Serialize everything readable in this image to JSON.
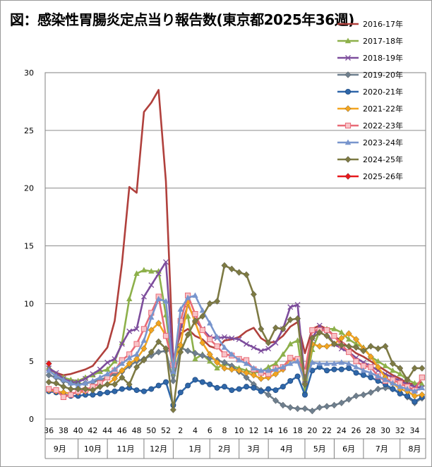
{
  "title": "図：感染性胃腸炎定点当り報告数(東京都2025年36週)",
  "chart_data": {
    "type": "line",
    "title": "図：感染性胃腸炎定点当り報告数(東京都2025年36週)",
    "xlabel": "",
    "ylabel": "",
    "ylim": [
      0,
      30
    ],
    "y_ticks": [
      "0",
      "5",
      "10",
      "15",
      "20",
      "25",
      "30"
    ],
    "grid": true,
    "legend_position": "top-right",
    "week_labels": [
      "36",
      "",
      "38",
      "",
      "40",
      "",
      "42",
      "",
      "44",
      "",
      "46",
      "",
      "48",
      "",
      "50",
      "",
      "52",
      "",
      "2",
      "",
      "4",
      "",
      "6",
      "",
      "8",
      "",
      "10",
      "",
      "12",
      "",
      "14",
      "",
      "16",
      "",
      "18",
      "",
      "20",
      "",
      "22",
      "",
      "24",
      "",
      "26",
      "",
      "28",
      "",
      "30",
      "",
      "32",
      "",
      "34",
      ""
    ],
    "month_labels": [
      {
        "label": "9月",
        "center": 2
      },
      {
        "label": "10月",
        "center": 6.5
      },
      {
        "label": "11月",
        "center": 11
      },
      {
        "label": "12月",
        "center": 15.5
      },
      {
        "label": "1月",
        "center": 20.5
      },
      {
        "label": "2月",
        "center": 24.5
      },
      {
        "label": "3月",
        "center": 28.5
      },
      {
        "label": "4月",
        "center": 33
      },
      {
        "label": "5月",
        "center": 37.5
      },
      {
        "label": "6月",
        "center": 41.5
      },
      {
        "label": "7月",
        "center": 46
      },
      {
        "label": "8月",
        "center": 50.5
      }
    ],
    "month_dividers": [
      4.5,
      8.5,
      13.5,
      17.5,
      22.5,
      26.5,
      30.5,
      35.5,
      39.5,
      43.5,
      48.5
    ],
    "series": [
      {
        "name": "2016-17年",
        "color": "#b0403c",
        "marker": "none",
        "values": [
          4.3,
          4.0,
          3.8,
          3.9,
          4.1,
          4.3,
          4.6,
          5.4,
          6.2,
          8.5,
          13.5,
          20.1,
          19.6,
          26.6,
          27.4,
          28.5,
          20.6,
          5.1,
          7.4,
          7.8,
          7.2,
          6.9,
          6.3,
          6.1,
          6.8,
          6.9,
          7.1,
          7.6,
          7.9,
          7.0,
          6.6,
          6.7,
          7.2,
          8.0,
          8.4,
          5.7,
          7.8,
          8.1,
          7.8,
          7.2,
          6.7,
          6.2,
          5.7,
          5.4,
          5.0,
          4.6,
          4.2,
          3.8,
          3.5,
          3.1,
          3.0,
          3.2
        ]
      },
      {
        "name": "2017-18年",
        "color": "#8db04a",
        "marker": "triangle",
        "values": [
          4.5,
          3.9,
          3.6,
          3.4,
          3.3,
          3.6,
          3.8,
          4.1,
          4.3,
          5.0,
          6.6,
          10.4,
          12.6,
          12.9,
          12.8,
          12.8,
          9.0,
          3.9,
          8.2,
          8.9,
          5.2,
          5.6,
          5.0,
          4.4,
          4.8,
          4.6,
          4.4,
          4.2,
          4.0,
          4.1,
          4.5,
          4.8,
          5.6,
          6.5,
          6.8,
          2.4,
          6.0,
          7.6,
          7.8,
          7.8,
          7.5,
          6.9,
          6.5,
          6.2,
          5.4,
          5.0,
          4.6,
          4.2,
          3.9,
          3.4,
          3.1,
          3.0
        ]
      },
      {
        "name": "2018-19年",
        "color": "#7d4d9c",
        "marker": "x",
        "values": [
          4.4,
          4.0,
          3.5,
          3.2,
          3.2,
          3.5,
          3.9,
          4.3,
          4.9,
          5.2,
          6.5,
          7.6,
          7.8,
          10.6,
          11.6,
          12.6,
          13.6,
          5.0,
          7.8,
          9.9,
          8.6,
          7.8,
          7.1,
          7.0,
          7.1,
          7.0,
          6.9,
          6.5,
          6.2,
          5.9,
          6.1,
          6.6,
          7.8,
          9.7,
          9.9,
          3.4,
          7.0,
          8.1,
          7.4,
          6.5,
          6.1,
          5.8,
          5.3,
          4.9,
          4.6,
          4.2,
          3.9,
          3.6,
          3.3,
          3.0,
          2.8,
          2.7
        ]
      },
      {
        "name": "2019-20年",
        "color": "#6e7f8e",
        "marker": "diamond",
        "values": [
          3.8,
          3.6,
          3.3,
          3.1,
          3.0,
          3.1,
          3.2,
          3.4,
          3.6,
          3.9,
          4.1,
          4.6,
          5.0,
          5.2,
          5.5,
          5.8,
          5.9,
          3.3,
          6.2,
          5.9,
          5.7,
          5.5,
          5.3,
          5.1,
          4.9,
          4.6,
          4.1,
          3.6,
          3.0,
          2.5,
          2.1,
          1.6,
          1.2,
          1.0,
          0.9,
          0.9,
          0.7,
          1.0,
          1.1,
          1.2,
          1.4,
          1.7,
          2.0,
          2.1,
          2.3,
          2.6,
          2.7,
          2.6,
          2.3,
          1.9,
          1.4,
          1.8
        ]
      },
      {
        "name": "2020-21年",
        "color": "#2f67a9",
        "marker": "circle",
        "values": [
          2.4,
          2.3,
          2.1,
          2.0,
          2.0,
          2.1,
          2.1,
          2.2,
          2.3,
          2.4,
          2.6,
          2.7,
          2.5,
          2.4,
          2.6,
          2.9,
          3.2,
          1.2,
          2.3,
          2.9,
          3.4,
          3.2,
          3.0,
          2.7,
          2.8,
          2.5,
          2.6,
          2.8,
          2.7,
          2.4,
          2.6,
          2.5,
          2.8,
          3.3,
          3.7,
          2.1,
          4.2,
          4.5,
          4.2,
          4.3,
          4.3,
          4.4,
          4.0,
          3.8,
          3.6,
          3.3,
          3.0,
          2.6,
          2.2,
          2.0,
          1.5,
          1.9
        ]
      },
      {
        "name": "2021-22年",
        "color": "#f3a51f",
        "marker": "diamond",
        "values": [
          2.5,
          2.4,
          2.3,
          2.2,
          2.3,
          2.4,
          2.6,
          2.8,
          3.0,
          3.5,
          4.2,
          4.8,
          5.2,
          6.1,
          7.7,
          8.3,
          7.2,
          4.8,
          6.4,
          10.1,
          8.4,
          6.6,
          5.6,
          4.9,
          4.4,
          4.3,
          4.2,
          4.0,
          3.8,
          3.5,
          3.6,
          3.9,
          4.3,
          5.2,
          5.1,
          3.1,
          6.5,
          6.3,
          6.3,
          6.5,
          7.0,
          7.4,
          6.9,
          6.1,
          5.4,
          4.5,
          3.6,
          3.1,
          2.6,
          2.4,
          2.0,
          2.1
        ]
      },
      {
        "name": "2022-23年",
        "color": "#e86a76",
        "marker": "square",
        "values": [
          2.6,
          2.5,
          1.9,
          2.1,
          2.4,
          2.5,
          2.8,
          3.1,
          3.6,
          4.2,
          5.1,
          5.6,
          6.5,
          7.8,
          9.2,
          10.6,
          7.2,
          4.7,
          8.5,
          10.7,
          9.1,
          7.7,
          6.9,
          6.3,
          5.6,
          5.5,
          5.2,
          5.1,
          4.3,
          4.0,
          3.9,
          4.4,
          4.5,
          5.3,
          5.2,
          4.1,
          7.7,
          7.7,
          7.7,
          7.2,
          6.4,
          5.8,
          5.0,
          4.6,
          4.5,
          3.7,
          3.3,
          3.4,
          3.1,
          2.8,
          2.5,
          3.6
        ]
      },
      {
        "name": "2023-24年",
        "color": "#7895cd",
        "marker": "triangle",
        "values": [
          4.2,
          3.7,
          3.4,
          3.1,
          2.9,
          3.1,
          3.3,
          3.6,
          3.9,
          4.3,
          4.8,
          5.3,
          5.6,
          6.8,
          8.8,
          10.4,
          10.2,
          4.1,
          9.5,
          10.5,
          10.7,
          9.4,
          8.3,
          7.1,
          6.2,
          5.6,
          5.1,
          4.8,
          4.4,
          4.2,
          4.2,
          4.3,
          4.5,
          4.8,
          5.0,
          3.2,
          4.9,
          4.8,
          4.8,
          4.8,
          4.9,
          4.8,
          4.5,
          4.2,
          4.0,
          3.7,
          3.4,
          3.1,
          2.8,
          2.6,
          2.4,
          2.7
        ]
      },
      {
        "name": "2024-25年",
        "color": "#7d7a43",
        "marker": "diamond",
        "values": [
          3.2,
          3.1,
          2.8,
          2.6,
          2.6,
          2.6,
          2.5,
          2.8,
          3.0,
          3.0,
          3.6,
          3.0,
          4.5,
          5.1,
          5.8,
          6.7,
          6.1,
          0.8,
          5.8,
          7.3,
          8.5,
          8.9,
          10.0,
          10.2,
          13.3,
          13.0,
          12.7,
          12.5,
          10.8,
          7.8,
          6.6,
          7.9,
          7.8,
          8.6,
          8.7,
          3.0,
          7.0,
          7.5,
          7.2,
          6.5,
          6.4,
          6.3,
          6.2,
          5.9,
          6.3,
          6.1,
          6.3,
          4.8,
          4.4,
          3.4,
          4.4,
          4.4
        ]
      },
      {
        "name": "2025-26年",
        "color": "#e8181c",
        "marker": "diamond",
        "values": [
          4.8
        ]
      }
    ]
  }
}
